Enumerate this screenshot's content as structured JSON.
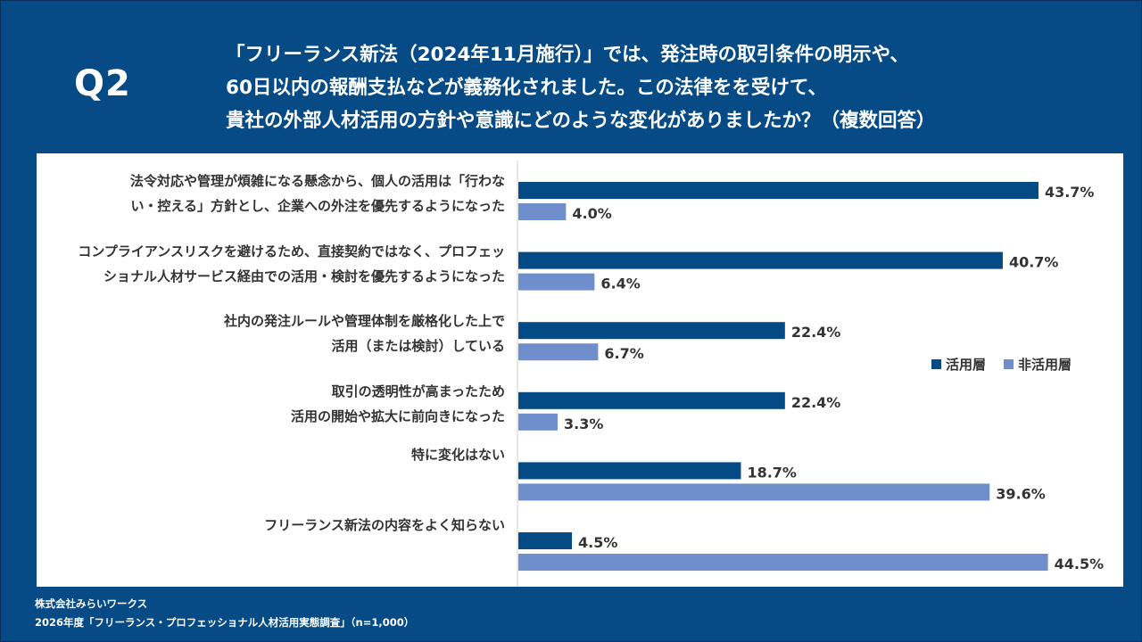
{
  "header": {
    "question_number": "Q2",
    "question_lines": [
      "「フリーランス新法（2024年11月施行）」では、発注時の取引条件の明示や、",
      "60日以内の報酬支払などが義務化されました。この法律をを受けて、",
      "貴社の外部人材活用の方針や意識にどのような変化がありましたか？（複数回答）"
    ]
  },
  "footer": {
    "company": "株式会社みらいワークス",
    "source": "2026年度「フリーランス・プロフェッショナル人材活用実態調査」（n=1,000）"
  },
  "colors": {
    "background": "#064b86",
    "series_active": "#044a84",
    "series_inactive": "#6e8fcb",
    "label_text": "#333333"
  },
  "chart_data": {
    "type": "bar",
    "orientation": "horizontal",
    "title": "",
    "xlabel": "",
    "ylabel": "",
    "xlim": [
      0,
      44.5
    ],
    "grid": false,
    "legend_position": "right",
    "categories": [
      [
        "法令対応や管理が煩雑になる懸念から、個人の活用は「行わな",
        "い・控える」方針とし、企業への外注を優先するようになった"
      ],
      [
        "コンプライアンスリスクを避けるため、直接契約ではなく、プロフェッ",
        "ショナル人材サービス経由での活用・検討を優先するようになった"
      ],
      [
        "社内の発注ルールや管理体制を厳格化した上で",
        "活用（または検討）している"
      ],
      [
        "取引の透明性が高まったため",
        "活用の開始や拡大に前向きになった"
      ],
      [
        "特に変化はない"
      ],
      [
        "フリーランス新法の内容をよく知らない"
      ]
    ],
    "series": [
      {
        "name": "活用層",
        "values": [
          43.7,
          40.7,
          22.4,
          22.4,
          18.7,
          4.5
        ],
        "labels": [
          "43.7%",
          "40.7%",
          "22.4%",
          "22.4%",
          "18.7%",
          "4.5%"
        ]
      },
      {
        "name": "非活用層",
        "values": [
          4.0,
          6.4,
          6.7,
          3.3,
          39.6,
          44.5
        ],
        "labels": [
          "4.0%",
          "6.4%",
          "6.7%",
          "3.3%",
          "39.6%",
          "44.5%"
        ]
      }
    ]
  }
}
